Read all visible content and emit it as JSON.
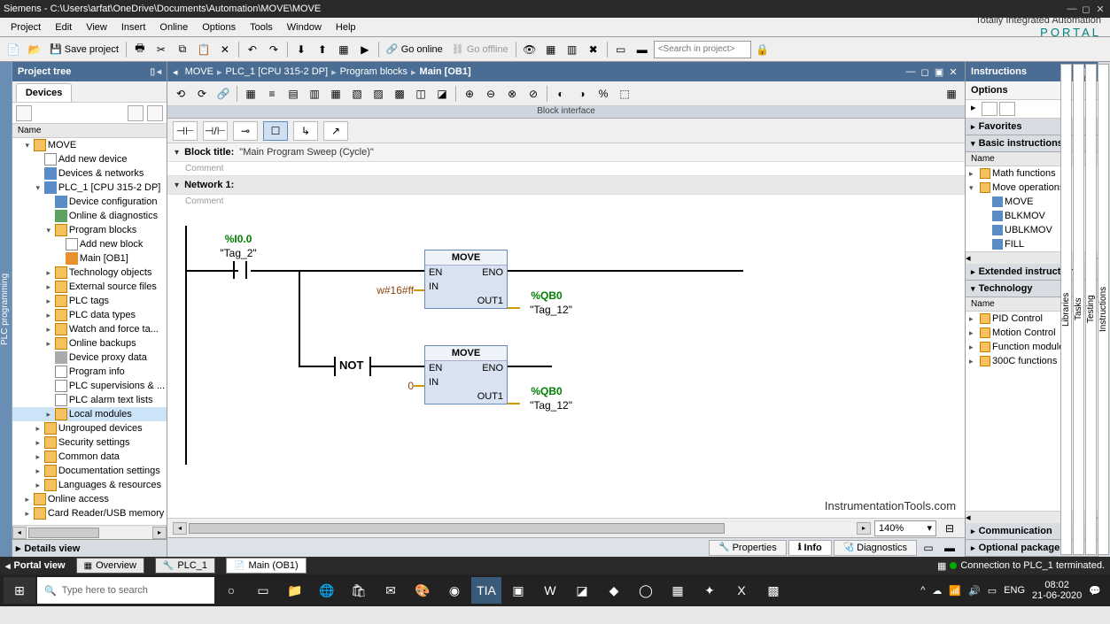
{
  "titlebar": {
    "text": "Siemens  -  C:\\Users\\arfat\\OneDrive\\Documents\\Automation\\MOVE\\MOVE"
  },
  "menu": {
    "items": [
      "Project",
      "Edit",
      "View",
      "Insert",
      "Online",
      "Options",
      "Tools",
      "Window",
      "Help"
    ],
    "brand_line1": "Totally Integrated Automation",
    "brand_line2": "PORTAL"
  },
  "toolbar": {
    "save": "Save project",
    "go_online": "Go online",
    "go_offline": "Go offline",
    "search_placeholder": "<Search in project>"
  },
  "projtree": {
    "title": "Project tree",
    "tab": "Devices",
    "colhead": "Name",
    "details": "Details view",
    "sidetab": "PLC programming",
    "root": "MOVE",
    "items": [
      {
        "indent": 1,
        "exp": "▾",
        "ic": "ic-folder",
        "label": "MOVE"
      },
      {
        "indent": 2,
        "exp": "",
        "ic": "ic-doc",
        "label": "Add new device"
      },
      {
        "indent": 2,
        "exp": "",
        "ic": "ic-blue",
        "label": "Devices & networks"
      },
      {
        "indent": 2,
        "exp": "▾",
        "ic": "ic-blue",
        "label": "PLC_1 [CPU 315-2 DP]"
      },
      {
        "indent": 3,
        "exp": "",
        "ic": "ic-blue",
        "label": "Device configuration"
      },
      {
        "indent": 3,
        "exp": "",
        "ic": "ic-green",
        "label": "Online & diagnostics"
      },
      {
        "indent": 3,
        "exp": "▾",
        "ic": "ic-folder",
        "label": "Program blocks"
      },
      {
        "indent": 4,
        "exp": "",
        "ic": "ic-doc",
        "label": "Add new block"
      },
      {
        "indent": 4,
        "exp": "",
        "ic": "ic-orange",
        "label": "Main [OB1]"
      },
      {
        "indent": 3,
        "exp": "▸",
        "ic": "ic-folder",
        "label": "Technology objects"
      },
      {
        "indent": 3,
        "exp": "▸",
        "ic": "ic-folder",
        "label": "External source files"
      },
      {
        "indent": 3,
        "exp": "▸",
        "ic": "ic-folder",
        "label": "PLC tags"
      },
      {
        "indent": 3,
        "exp": "▸",
        "ic": "ic-folder",
        "label": "PLC data types"
      },
      {
        "indent": 3,
        "exp": "▸",
        "ic": "ic-folder",
        "label": "Watch and force ta..."
      },
      {
        "indent": 3,
        "exp": "▸",
        "ic": "ic-folder",
        "label": "Online backups"
      },
      {
        "indent": 3,
        "exp": "",
        "ic": "ic-gray",
        "label": "Device proxy data"
      },
      {
        "indent": 3,
        "exp": "",
        "ic": "ic-doc",
        "label": "Program info"
      },
      {
        "indent": 3,
        "exp": "",
        "ic": "ic-doc",
        "label": "PLC supervisions & ..."
      },
      {
        "indent": 3,
        "exp": "",
        "ic": "ic-doc",
        "label": "PLC alarm text lists"
      },
      {
        "indent": 3,
        "exp": "▸",
        "ic": "ic-folder",
        "label": "Local modules",
        "selected": true
      },
      {
        "indent": 2,
        "exp": "▸",
        "ic": "ic-folder",
        "label": "Ungrouped devices"
      },
      {
        "indent": 2,
        "exp": "▸",
        "ic": "ic-folder",
        "label": "Security settings"
      },
      {
        "indent": 2,
        "exp": "▸",
        "ic": "ic-folder",
        "label": "Common data"
      },
      {
        "indent": 2,
        "exp": "▸",
        "ic": "ic-folder",
        "label": "Documentation settings"
      },
      {
        "indent": 2,
        "exp": "▸",
        "ic": "ic-folder",
        "label": "Languages & resources"
      },
      {
        "indent": 1,
        "exp": "▸",
        "ic": "ic-folder",
        "label": "Online access"
      },
      {
        "indent": 1,
        "exp": "▸",
        "ic": "ic-folder",
        "label": "Card Reader/USB memory"
      }
    ]
  },
  "breadcrumb": {
    "items": [
      "MOVE",
      "PLC_1 [CPU 315-2 DP]",
      "Program blocks",
      "Main [OB1]"
    ]
  },
  "blockiface": "Block interface",
  "block_title": {
    "label": "Block title:",
    "value": "\"Main Program Sweep (Cycle)\"",
    "comment": "Comment"
  },
  "network": {
    "label": "Network 1:",
    "comment": "Comment"
  },
  "ladder": {
    "contact1": {
      "addr": "%I0.0",
      "name": "\"Tag_2\""
    },
    "move1": {
      "title": "MOVE",
      "en": "EN",
      "eno": "ENO",
      "in": "IN",
      "out": "OUT1",
      "inval": "w#16#ff",
      "out_addr": "%QB0",
      "out_name": "\"Tag_12\""
    },
    "not": "NOT",
    "move2": {
      "title": "MOVE",
      "en": "EN",
      "eno": "ENO",
      "in": "IN",
      "out": "OUT1",
      "inval": "0",
      "out_addr": "%QB0",
      "out_name": "\"Tag_12\""
    },
    "watermark": "InstrumentationTools.com"
  },
  "zoom": "140%",
  "props": {
    "tabs": [
      "Properties",
      "Info",
      "Diagnostics"
    ],
    "active": 1
  },
  "rightpanel": {
    "title": "Instructions",
    "options": "Options",
    "sidetabs": [
      "Instructions",
      "Testing",
      "Tasks",
      "Libraries"
    ],
    "accordions": {
      "favorites": "Favorites",
      "basic": "Basic instructions",
      "extended": "Extended instructions",
      "technology": "Technology",
      "communication": "Communication",
      "optional": "Optional packages"
    },
    "colhead": "Name",
    "basic_items": [
      {
        "indent": 0,
        "exp": "▸",
        "ic": "ic-folder",
        "label": "Math functions"
      },
      {
        "indent": 0,
        "exp": "▾",
        "ic": "ic-folder",
        "label": "Move operations"
      },
      {
        "indent": 1,
        "exp": "",
        "ic": "ic-blue",
        "label": "MOVE"
      },
      {
        "indent": 1,
        "exp": "",
        "ic": "ic-blue",
        "label": "BLKMOV"
      },
      {
        "indent": 1,
        "exp": "",
        "ic": "ic-blue",
        "label": "UBLKMOV"
      },
      {
        "indent": 1,
        "exp": "",
        "ic": "ic-blue",
        "label": "FILL"
      }
    ],
    "tech_items": [
      {
        "indent": 0,
        "exp": "▸",
        "ic": "ic-folder",
        "label": "PID Control"
      },
      {
        "indent": 0,
        "exp": "▸",
        "ic": "ic-folder",
        "label": "Motion Control"
      },
      {
        "indent": 0,
        "exp": "▸",
        "ic": "ic-folder",
        "label": "Function modules"
      },
      {
        "indent": 0,
        "exp": "▸",
        "ic": "ic-folder",
        "label": "300C functions"
      }
    ]
  },
  "status": {
    "portal": "Portal view",
    "tabs": [
      "Overview",
      "PLC_1",
      "Main (OB1)"
    ],
    "conn": "Connection to PLC_1 terminated."
  },
  "taskbar": {
    "search": "Type here to search",
    "tray": {
      "lang": "ENG",
      "time": "08:02",
      "date": "21-06-2020"
    }
  }
}
